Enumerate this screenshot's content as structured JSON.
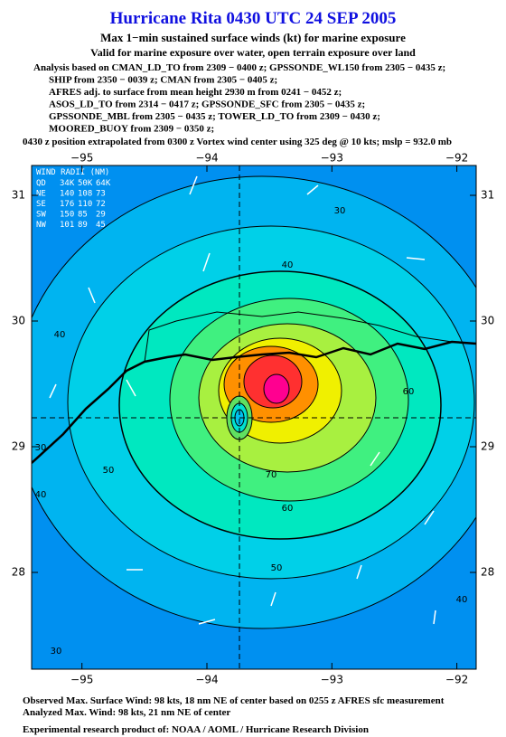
{
  "header": {
    "title": "Hurricane Rita 0430 UTC 24 SEP 2005",
    "subtitle": "Max 1−min sustained surface winds (kt) for marine exposure",
    "validity": "Valid for marine exposure over water, open terrain exposure over land",
    "analysis": [
      "Analysis based on  CMAN_LD_TO from 2309 − 0400 z;  GPSSONDE_WL150 from 2305 − 0435 z;",
      "SHIP from 2350 − 0039 z;  CMAN from 2305 − 0405 z;",
      "AFRES adj. to surface from mean height 2930 m from 0241 − 0452 z;",
      "ASOS_LD_TO from 2314 − 0417 z;  GPSSONDE_SFC from 2305 − 0435 z;",
      "GPSSONDE_MBL from 2305 − 0435 z;  TOWER_LD_TO from 2309 − 0430 z;",
      "MOORED_BUOY from 2309 − 0350 z;"
    ],
    "position_note": "0430 z position extrapolated from 0300 z Vortex wind center using 325 deg @ 10 kts; mslp = 932.0 mb"
  },
  "map": {
    "lon_ticks": [
      {
        "value": -95,
        "label": "−95"
      },
      {
        "value": -94,
        "label": "−94"
      },
      {
        "value": -93,
        "label": "−93"
      },
      {
        "value": -92,
        "label": "−92"
      }
    ],
    "lat_ticks": [
      31,
      30,
      29,
      28
    ],
    "wind_radii": {
      "title": "WIND RADII (NM)",
      "rows": [
        [
          "QD",
          "34K",
          "50K",
          "64K"
        ],
        [
          "NE",
          140,
          108,
          73
        ],
        [
          "SE",
          176,
          110,
          72
        ],
        [
          "SW",
          150,
          85,
          29
        ],
        [
          "NW",
          101,
          89,
          45
        ]
      ]
    },
    "contour_labels": [
      30,
      40,
      40,
      30,
      40,
      50,
      60,
      70,
      60,
      50,
      40,
      30
    ]
  },
  "footer": [
    "Observed Max. Surface Wind: 98 kts, 18 nm NE of center based on 0255 z AFRES sfc measurement",
    "Analyzed Max. Wind: 98 kts, 21 nm NE of center",
    "Experimental research product of:  NOAA / AOML / Hurricane Research Division"
  ]
}
